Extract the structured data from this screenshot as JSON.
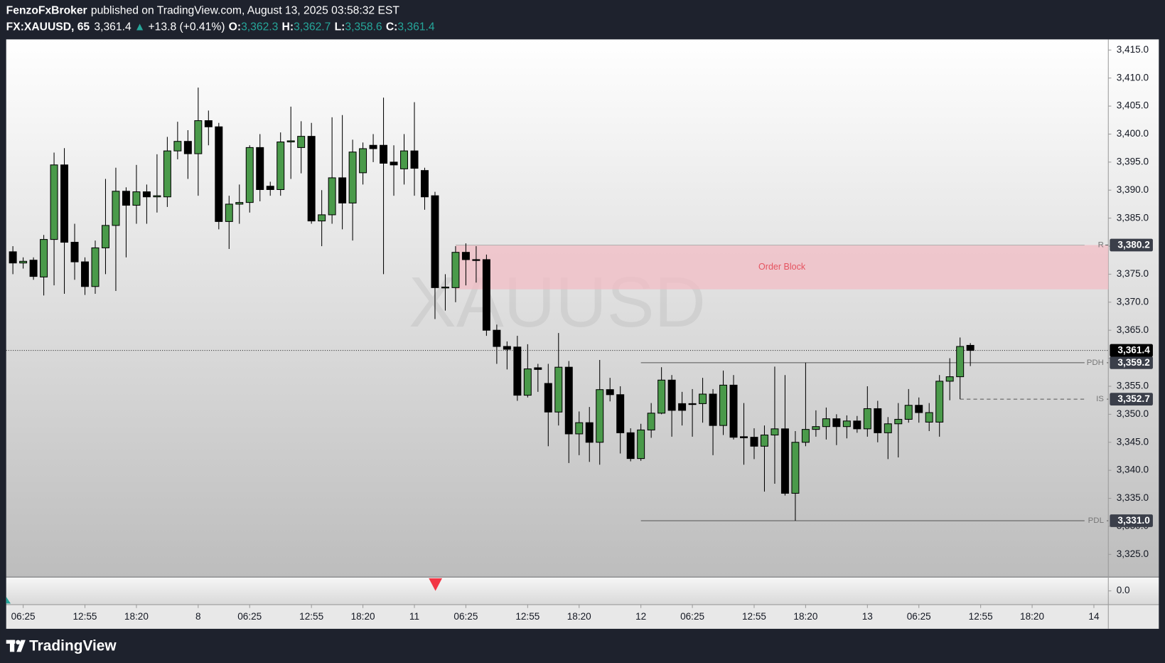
{
  "header": {
    "publisher": "FenzoFxBroker",
    "published": "published on TradingView.com, August 13, 2025 03:58:32 EST",
    "symbol": "FX:XAUUSD, 65",
    "last": "3,361.4",
    "arrow": "▲",
    "change": "+13.8 (+0.41%)",
    "o_label": "O:",
    "open": "3,362.3",
    "h_label": "H:",
    "high": "3,362.7",
    "l_label": "L:",
    "low": "3,358.6",
    "c_label": "C:",
    "close": "3,361.4"
  },
  "chart_data": {
    "type": "candlestick",
    "watermark": "XAUUSD",
    "open": [
      3379,
      3377,
      3377.5,
      3374.5,
      3381.2,
      3394.5,
      3380.7,
      3377.2,
      3372.8,
      3379.7,
      3383.7,
      3389.8,
      3387.3,
      3389.7,
      3388.8,
      3388.8,
      3397,
      3398.7,
      3396.5,
      3402.4,
      3401.3,
      3384.4,
      3387.5,
      3387.8,
      3397.6,
      3390.7,
      3390.1,
      3398.6,
      3397.6,
      3399.6,
      3384.5,
      3385.6,
      3392.2,
      3387.7,
      3393.1,
      3398,
      3398,
      3395,
      3393.8,
      3397,
      3393.5,
      3389,
      3372.6,
      3372.6,
      3378.9,
      3377.6,
      3377.6,
      3365,
      3362.1,
      3362,
      3353.4,
      3358.3,
      3355.5,
      3350.4,
      3358.4,
      3346.5,
      3348.5,
      3345,
      3354.4,
      3353.5,
      3346.7,
      3342.1,
      3347.2,
      3350.2,
      3356.1,
      3351.9,
      3351.9,
      3351.9,
      3353.6,
      3348,
      3355.2,
      3346,
      3345.9,
      3344.3,
      3346.3,
      3347.4,
      3335.9,
      3345,
      3347.3,
      3347.8,
      3349.2,
      3347.8,
      3348.8,
      3347.4,
      3351,
      3346.7,
      3348.3,
      3349.1,
      3351.6,
      3348.6,
      3348.6,
      3355.9,
      3356.7,
      3362.3
    ],
    "high": [
      3380,
      3378,
      3378,
      3382,
      3396.7,
      3397.5,
      3384,
      3378,
      3381,
      3392,
      3394,
      3390.5,
      3394.5,
      3391,
      3396.4,
      3399.5,
      3402.2,
      3400.7,
      3408.3,
      3404.2,
      3402,
      3389,
      3391,
      3398,
      3400,
      3391.5,
      3400.3,
      3404.9,
      3402.3,
      3402,
      3390,
      3403,
      3403.4,
      3399,
      3398.5,
      3400,
      3406.5,
      3398,
      3400,
      3405.7,
      3394,
      3389.7,
      3375,
      3380,
      3380.5,
      3380,
      3378.5,
      3366,
      3363,
      3364,
      3362.5,
      3359,
      3359,
      3364.5,
      3359.5,
      3350.5,
      3351.3,
      3359.7,
      3356.5,
      3355,
      3347.5,
      3348.3,
      3352,
      3358.4,
      3357,
      3354,
      3354.5,
      3356.5,
      3354.5,
      3357.8,
      3357,
      3352,
      3347.5,
      3348,
      3358.5,
      3357,
      3347,
      3359.2,
      3350.7,
      3351.2,
      3350,
      3349.8,
      3349.7,
      3355,
      3352.4,
      3349.5,
      3352,
      3354.5,
      3353,
      3352,
      3357,
      3360,
      3363.7,
      3362.7
    ],
    "low": [
      3375,
      3376,
      3374,
      3371.2,
      3373,
      3371.5,
      3374,
      3371.3,
      3371.5,
      3375,
      3372,
      3378,
      3384,
      3384,
      3386,
      3387,
      3395.5,
      3392,
      3389,
      3398,
      3383,
      3379.5,
      3384,
      3386,
      3388,
      3389,
      3389,
      3392,
      3393,
      3384,
      3380,
      3384,
      3383,
      3381,
      3391,
      3395,
      3375,
      3389,
      3391,
      3389,
      3386.5,
      3367,
      3368.5,
      3370,
      3373,
      3373.5,
      3364,
      3359,
      3358,
      3352.4,
      3353,
      3354,
      3344.3,
      3348,
      3341.3,
      3342.7,
      3341.5,
      3341,
      3352.3,
      3343,
      3341.6,
      3341.7,
      3345.8,
      3350,
      3346,
      3348,
      3346,
      3348.5,
      3342.7,
      3346.3,
      3345.5,
      3341,
      3342,
      3336.2,
      3337.6,
      3335.5,
      3331,
      3344.3,
      3346,
      3345.5,
      3344.5,
      3345.7,
      3346.7,
      3346,
      3345,
      3342,
      3342.3,
      3348.5,
      3348.5,
      3347,
      3346,
      3352.5,
      3352.7,
      3358.6
    ],
    "close": [
      3377,
      3377.3,
      3374.6,
      3381.2,
      3394.5,
      3380.7,
      3377.2,
      3372.8,
      3379.7,
      3383.7,
      3389.8,
      3387.3,
      3389.7,
      3388.8,
      3389,
      3397,
      3398.7,
      3396.5,
      3402.4,
      3401.3,
      3384.4,
      3387.5,
      3387.8,
      3397.6,
      3390.1,
      3390.1,
      3398.6,
      3398.8,
      3399.6,
      3384.5,
      3385.6,
      3392.2,
      3387.7,
      3396.8,
      3397.4,
      3397.4,
      3394.8,
      3394.5,
      3397,
      3393.9,
      3388.8,
      3372.6,
      3372.7,
      3378.9,
      3377.6,
      3377.5,
      3365,
      3362.1,
      3361.6,
      3353.4,
      3358.1,
      3358,
      3350.4,
      3358.4,
      3346.5,
      3348.5,
      3345,
      3354.4,
      3353.5,
      3346.7,
      3342.1,
      3347.2,
      3350.2,
      3356.1,
      3350.7,
      3350.7,
      3351.8,
      3353.6,
      3348,
      3355.2,
      3345.9,
      3345.8,
      3344.3,
      3346.3,
      3347.4,
      3335.9,
      3345,
      3347.3,
      3347.8,
      3349.2,
      3347.8,
      3348.8,
      3347.4,
      3351,
      3346.7,
      3348.3,
      3349.1,
      3351.6,
      3350.3,
      3350.3,
      3355.9,
      3356.7,
      3362.1,
      3361.4
    ],
    "up_color": "#4a9a4a",
    "down_color": "#000000",
    "xlim": [
      -0.65,
      106.4
    ],
    "xticks": [
      {
        "value": 1,
        "label": "06:25"
      },
      {
        "value": 7,
        "label": "12:55"
      },
      {
        "value": 12,
        "label": "18:20"
      },
      {
        "value": 18,
        "label": "8"
      },
      {
        "value": 23,
        "label": "06:25"
      },
      {
        "value": 29,
        "label": "12:55"
      },
      {
        "value": 34,
        "label": "18:20"
      },
      {
        "value": 39,
        "label": "11"
      },
      {
        "value": 44,
        "label": "06:25"
      },
      {
        "value": 50,
        "label": "12:55"
      },
      {
        "value": 55,
        "label": "18:20"
      },
      {
        "value": 61,
        "label": "12"
      },
      {
        "value": 66,
        "label": "06:25"
      },
      {
        "value": 72,
        "label": "12:55"
      },
      {
        "value": 77,
        "label": "18:20"
      },
      {
        "value": 83,
        "label": "13"
      },
      {
        "value": 88,
        "label": "06:25"
      },
      {
        "value": 94,
        "label": "12:55"
      },
      {
        "value": 99,
        "label": "18:20"
      },
      {
        "value": 105,
        "label": "14"
      }
    ],
    "ylim": [
      3321.0,
      3416.9
    ],
    "yticks": [
      {
        "value": 3325,
        "label": "3,325.0"
      },
      {
        "value": 3330,
        "label": "3,330.0"
      },
      {
        "value": 3335,
        "label": "3,335.0"
      },
      {
        "value": 3340,
        "label": "3,340.0"
      },
      {
        "value": 3345,
        "label": "3,345.0"
      },
      {
        "value": 3350,
        "label": "3,350.0"
      },
      {
        "value": 3355,
        "label": "3,355.0"
      },
      {
        "value": 3360,
        "label": "3,360.0"
      },
      {
        "value": 3365,
        "label": "3,365.0"
      },
      {
        "value": 3370,
        "label": "3,370.0"
      },
      {
        "value": 3375,
        "label": "3,375.0"
      },
      {
        "value": 3380,
        "label": "3,380.0"
      },
      {
        "value": 3385,
        "label": "3,385.0"
      },
      {
        "value": 3390,
        "label": "3,390.0"
      },
      {
        "value": 3395,
        "label": "3,395.0"
      },
      {
        "value": 3400,
        "label": "3,400.0"
      },
      {
        "value": 3405,
        "label": "3,405.0"
      },
      {
        "value": 3410,
        "label": "3,410.0"
      },
      {
        "value": 3415,
        "label": "3,415.0"
      }
    ],
    "zone": {
      "label": "Order Block",
      "top": 3380.2,
      "bottom": 3372.3,
      "start": 43,
      "color": "#f2bcc4"
    },
    "levels": [
      {
        "name": "R",
        "value": 3380.2,
        "label": "3,380.2",
        "start": 43,
        "style": "solid"
      },
      {
        "name": "PDH",
        "value": 3359.2,
        "label": "3,359.2",
        "start": 61,
        "style": "solid"
      },
      {
        "name": "IS",
        "value": 3352.7,
        "label": "3,352.7",
        "start": 92,
        "style": "dashed"
      },
      {
        "name": "PDL",
        "value": 3331.0,
        "label": "3,331.0",
        "start": 61,
        "style": "solid"
      }
    ],
    "last_price": {
      "value": 3361.4,
      "label": "3,361.4"
    }
  },
  "indicator": {
    "ylim": [
      -1,
      1
    ],
    "yticks": [
      {
        "value": 0,
        "label": "0.0"
      }
    ]
  },
  "footer": {
    "brand": "TradingView"
  }
}
